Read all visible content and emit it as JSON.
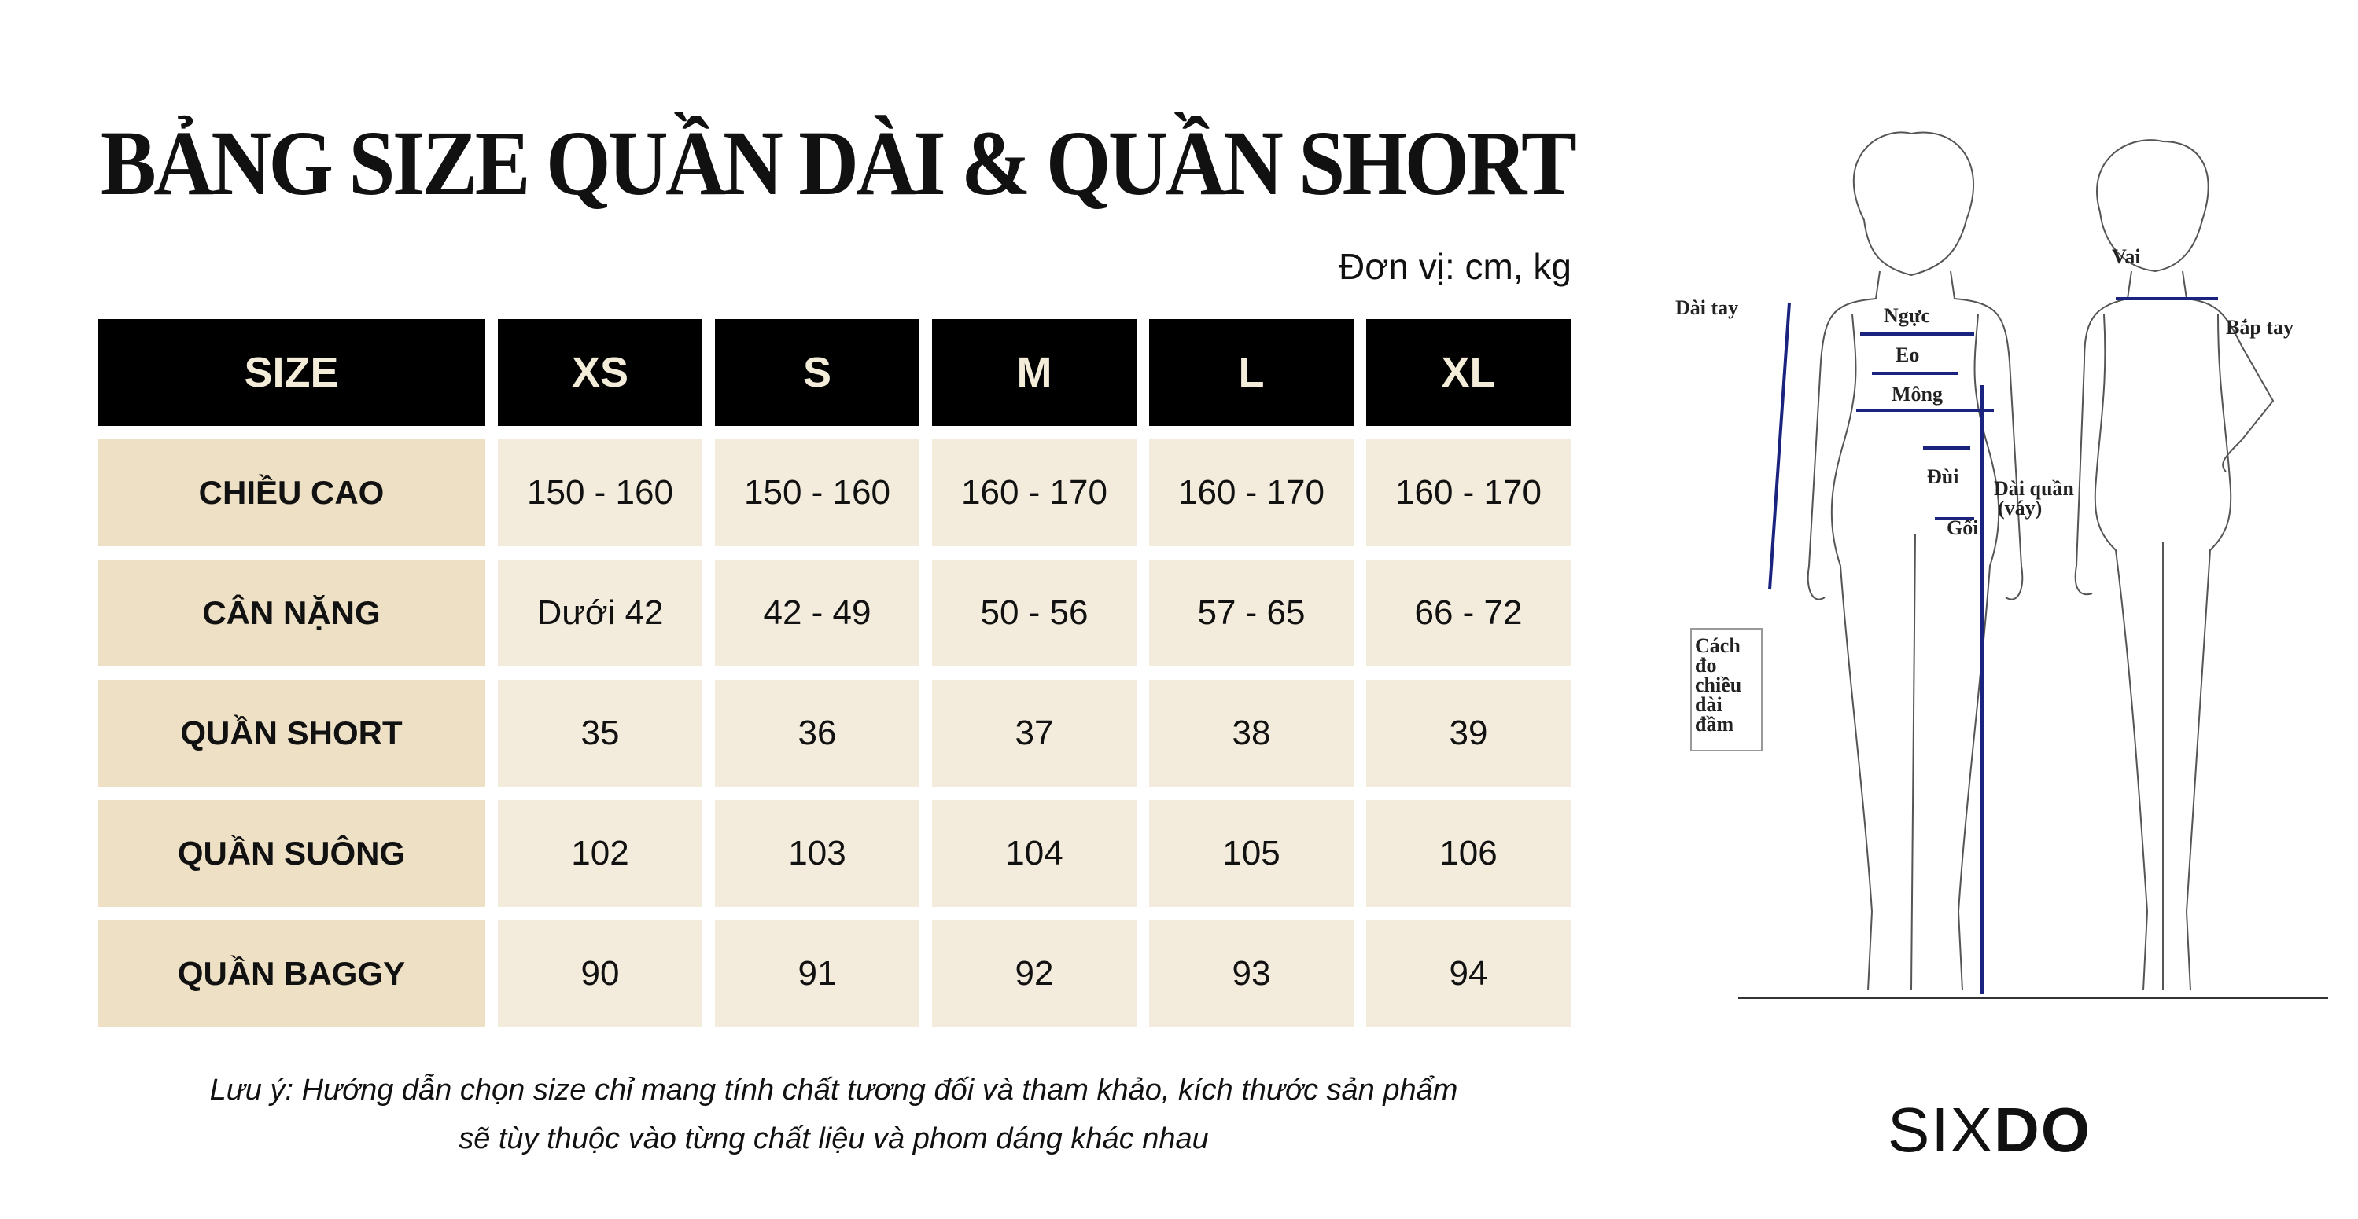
{
  "title": "BẢNG SIZE QUẦN DÀI & QUẦN SHORT",
  "unit": "Đơn vị: cm, kg",
  "table": {
    "headers": [
      "SIZE",
      "XS",
      "S",
      "M",
      "L",
      "XL"
    ],
    "rows": [
      {
        "label": "CHIỀU CAO",
        "values": [
          "150 - 160",
          "150 - 160",
          "160 - 170",
          "160 - 170",
          "160 - 170"
        ]
      },
      {
        "label": "CÂN NẶNG",
        "values": [
          "Dưới 42",
          "42 - 49",
          "50 - 56",
          "57 - 65",
          "66 - 72"
        ]
      },
      {
        "label": "QUẦN SHORT",
        "values": [
          "35",
          "36",
          "37",
          "38",
          "39"
        ]
      },
      {
        "label": "QUẦN SUÔNG",
        "values": [
          "102",
          "103",
          "104",
          "105",
          "106"
        ]
      },
      {
        "label": "QUẦN BAGGY",
        "values": [
          "90",
          "91",
          "92",
          "93",
          "94"
        ]
      }
    ]
  },
  "note": {
    "line1": "Lưu ý: Hướng dẫn chọn size chỉ mang tính chất tương đối và tham khảo, kích thước sản phẩm",
    "line2": "sẽ tùy thuộc vào từng chất liệu và phom dáng khác nhau"
  },
  "figure": {
    "labels": {
      "dai_tay": "Dài tay",
      "nguc": "Ngực",
      "eo": "Eo",
      "mong": "Mông",
      "dui": "Đùi",
      "goi": "Gối",
      "vai": "Vai",
      "bap_tay": "Bắp tay",
      "dai_quan": "Dài quần",
      "vay": "(váy)",
      "inset": [
        "Cách",
        "đo",
        "chiều",
        "dài",
        "đầm"
      ]
    },
    "measure_color": "#1a237e"
  },
  "logo": {
    "light": "SIX",
    "bold": "DO"
  }
}
